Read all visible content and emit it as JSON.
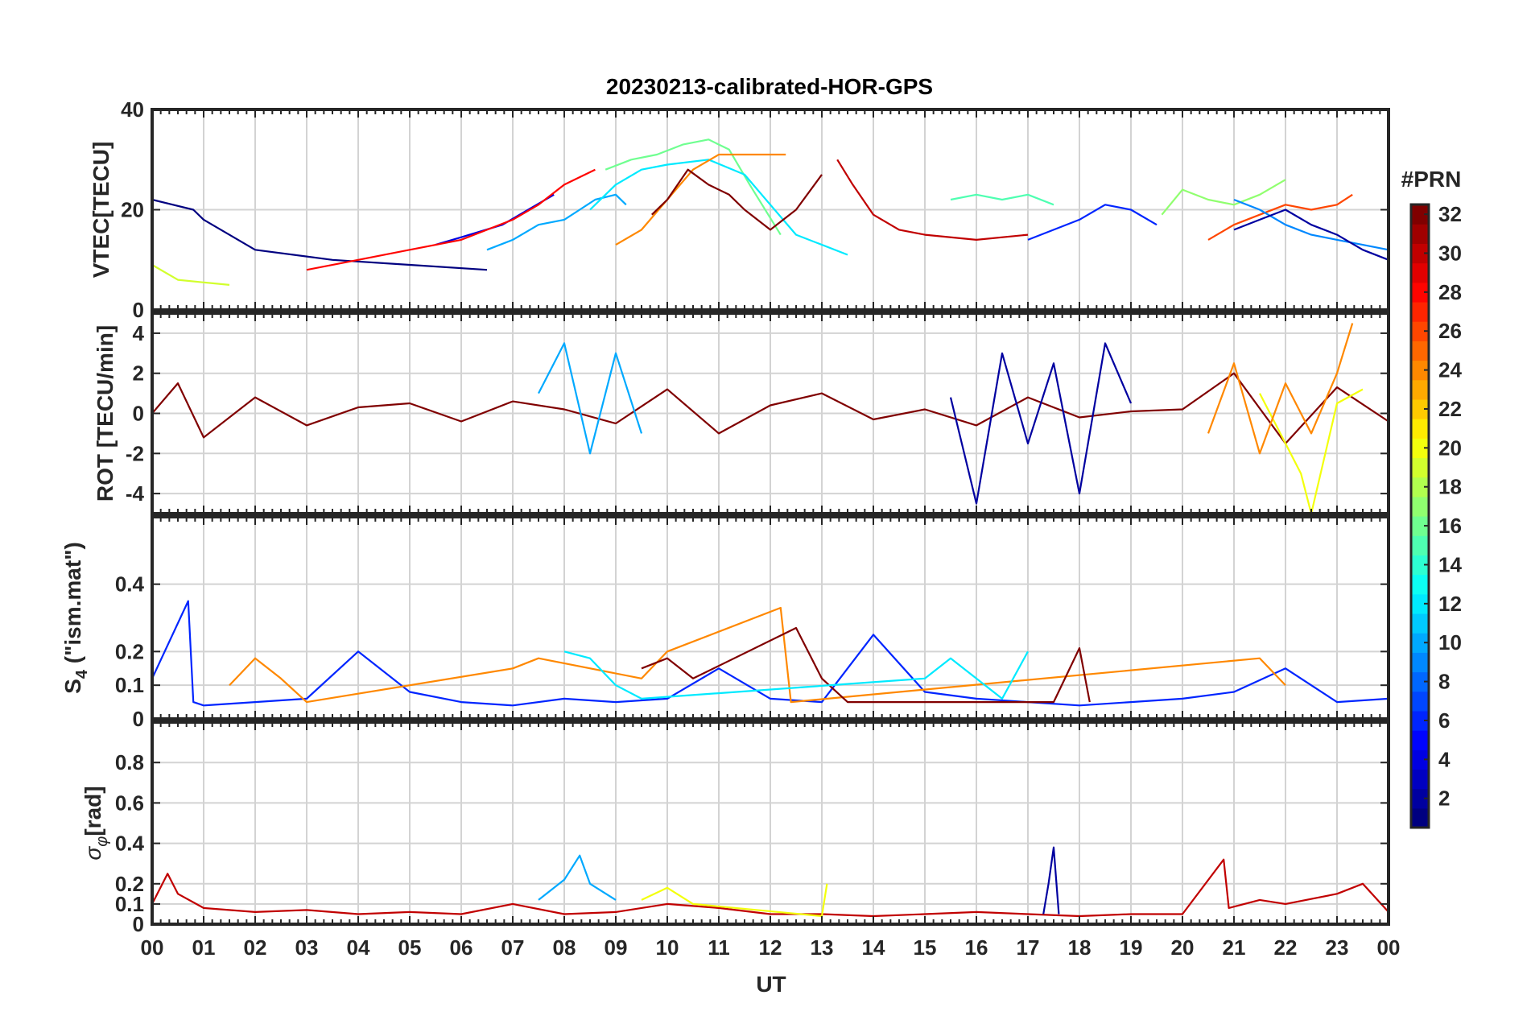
{
  "chart_data": {
    "type": "line",
    "title": "20230213-calibrated-HOR-GPS",
    "xlabel": "UT",
    "x_range_hours": [
      0,
      24
    ],
    "x_tick_labels": [
      "00",
      "01",
      "02",
      "03",
      "04",
      "05",
      "06",
      "07",
      "08",
      "09",
      "10",
      "11",
      "12",
      "13",
      "14",
      "15",
      "16",
      "17",
      "18",
      "19",
      "20",
      "21",
      "22",
      "23",
      "00"
    ],
    "grid": true,
    "colorbar": {
      "label": "#PRN",
      "range": [
        1,
        32
      ],
      "colormap": "jet",
      "tick_labels": [
        "2",
        "4",
        "6",
        "8",
        "10",
        "12",
        "14",
        "16",
        "18",
        "20",
        "22",
        "24",
        "26",
        "28",
        "30",
        "32"
      ]
    },
    "panels": [
      {
        "id": "vtec",
        "ylabel": "VTEC[TECU]",
        "ylim": [
          0,
          40
        ],
        "yticks": [
          0,
          20,
          40
        ],
        "ytick_labels": [
          "0",
          "20",
          "40"
        ],
        "series": [
          {
            "prn": 1,
            "name": "PRN 1",
            "x": [
              0,
              0.8,
              1.0,
              2.0,
              3.5,
              5.0,
              6.5
            ],
            "y": [
              22,
              20,
              18,
              12,
              10,
              9,
              8
            ]
          },
          {
            "prn": 4,
            "name": "PRN 4",
            "x": [
              5.5,
              6.0,
              6.8,
              7.3,
              7.8
            ],
            "y": [
              13,
              14.5,
              17,
              20,
              23
            ]
          },
          {
            "prn": 10,
            "name": "PRN 10",
            "x": [
              6.5,
              7.0,
              7.5,
              8.0,
              8.3,
              8.6,
              9.0,
              9.2
            ],
            "y": [
              12,
              14,
              17,
              18,
              20,
              22,
              23,
              21
            ]
          },
          {
            "prn": 28,
            "name": "PRN 28",
            "x": [
              3.0,
              4.0,
              5.0,
              6.0,
              7.0,
              7.5,
              8.0,
              8.6
            ],
            "y": [
              8,
              10,
              12,
              14,
              18,
              21,
              25,
              28
            ]
          },
          {
            "prn": 16,
            "name": "PRN 16",
            "x": [
              8.8,
              9.3,
              9.8,
              10.3,
              10.8,
              11.2,
              11.6,
              12.2
            ],
            "y": [
              28,
              30,
              31,
              33,
              34,
              32,
              25,
              15
            ]
          },
          {
            "prn": 12,
            "name": "PRN 12",
            "x": [
              8.5,
              9.0,
              9.5,
              10.0,
              10.8,
              11.5,
              12.0,
              12.5,
              13.5
            ],
            "y": [
              20,
              25,
              28,
              29,
              30,
              27,
              21,
              15,
              11
            ]
          },
          {
            "prn": 24,
            "name": "PRN 24",
            "x": [
              9.0,
              9.5,
              10.0,
              10.5,
              11.0,
              11.7,
              12.3
            ],
            "y": [
              13,
              16,
              22,
              28,
              31,
              31,
              31
            ]
          },
          {
            "prn": 32,
            "name": "PRN 32",
            "x": [
              9.7,
              10.0,
              10.4,
              10.8,
              11.2,
              11.5,
              12.0,
              12.5,
              13.0
            ],
            "y": [
              19,
              22,
              28,
              25,
              23,
              20,
              16,
              20,
              27
            ]
          },
          {
            "prn": 30,
            "name": "PRN 30",
            "x": [
              13.3,
              13.6,
              14.0,
              14.5,
              15.0,
              16.0,
              17.0
            ],
            "y": [
              30,
              25,
              19,
              16,
              15,
              14,
              15
            ]
          },
          {
            "prn": 15,
            "name": "PRN 15",
            "x": [
              15.5,
              16.0,
              16.5,
              17.0,
              17.5
            ],
            "y": [
              22,
              23,
              22,
              23,
              21
            ]
          },
          {
            "prn": 19,
            "name": "PRN 19",
            "x": [
              0,
              0.5,
              1.0,
              1.5
            ],
            "y": [
              9,
              6,
              5.5,
              5
            ]
          },
          {
            "prn": 6,
            "name": "PRN 6",
            "x": [
              17.0,
              17.5,
              18.0,
              18.5,
              19.0,
              19.5
            ],
            "y": [
              14,
              16,
              18,
              21,
              20,
              17
            ]
          },
          {
            "prn": 17,
            "name": "PRN 17",
            "x": [
              19.6,
              20.0,
              20.5,
              21.0,
              21.5,
              22.0
            ],
            "y": [
              19,
              24,
              22,
              21,
              23,
              26
            ]
          },
          {
            "prn": 26,
            "name": "PRN 26",
            "x": [
              20.5,
              21.0,
              21.5,
              22.0,
              22.5,
              23.0,
              23.3
            ],
            "y": [
              14,
              17,
              19,
              21,
              20,
              21,
              23
            ]
          },
          {
            "prn": 9,
            "name": "PRN 9",
            "x": [
              21.0,
              21.5,
              22.0,
              22.5,
              23.0,
              23.5,
              24.0
            ],
            "y": [
              22,
              20,
              17,
              15,
              14,
              13,
              12
            ]
          },
          {
            "prn": 2,
            "name": "PRN 2",
            "x": [
              21.0,
              21.5,
              22.0,
              22.5,
              23.0,
              23.5,
              24.0
            ],
            "y": [
              16,
              18,
              20,
              17,
              15,
              12,
              10
            ]
          }
        ]
      },
      {
        "id": "rot",
        "ylabel": "ROT [TECU/min]",
        "ylim": [
          -5,
          5
        ],
        "yticks": [
          -4,
          -2,
          0,
          2,
          4
        ],
        "ytick_labels": [
          "-4",
          "-2",
          "0",
          "2",
          "4"
        ],
        "series": [
          {
            "prn": 32,
            "name": "PRN 32",
            "x": [
              0,
              0.5,
              1.0,
              2.0,
              3.0,
              4.0,
              5.0,
              6.0,
              7.0,
              8.0,
              9.0,
              10.0,
              11.0,
              12.0,
              13.0,
              14.0,
              15.0,
              16.0,
              17.0,
              18.0,
              19.0,
              20.0,
              21.0,
              22.0,
              23.0,
              24.0
            ],
            "y": [
              0,
              1.5,
              -1.2,
              0.8,
              -0.6,
              0.3,
              0.5,
              -0.4,
              0.6,
              0.2,
              -0.5,
              1.2,
              -1.0,
              0.4,
              1.0,
              -0.3,
              0.2,
              -0.6,
              0.8,
              -0.2,
              0.1,
              0.2,
              2.0,
              -1.5,
              1.3,
              -0.4
            ]
          },
          {
            "prn": 10,
            "name": "PRN 10",
            "x": [
              7.5,
              8.0,
              8.5,
              9.0,
              9.5
            ],
            "y": [
              1.0,
              3.5,
              -2.0,
              3.0,
              -1.0
            ]
          },
          {
            "prn": 2,
            "name": "PRN 2",
            "x": [
              15.5,
              16.0,
              16.5,
              17.0,
              17.5,
              18.0,
              18.5,
              19.0
            ],
            "y": [
              0.8,
              -4.5,
              3.0,
              -1.5,
              2.5,
              -4.0,
              3.5,
              0.5
            ]
          },
          {
            "prn": 20,
            "name": "PRN 20",
            "x": [
              21.5,
              22.0,
              22.3,
              22.5,
              23.0,
              23.5
            ],
            "y": [
              1.0,
              -1.5,
              -3.0,
              -5.0,
              0.5,
              1.2
            ]
          },
          {
            "prn": 24,
            "name": "PRN 24",
            "x": [
              20.5,
              21.0,
              21.5,
              22.0,
              22.5,
              23.0,
              23.3
            ],
            "y": [
              -1.0,
              2.5,
              -2.0,
              1.5,
              -1.0,
              2.0,
              4.5
            ]
          }
        ]
      },
      {
        "id": "s4",
        "ylabel": "S4 (\"ism.mat\")",
        "ylim": [
          0,
          0.6
        ],
        "yticks": [
          0,
          0.1,
          0.2,
          0.4
        ],
        "ytick_labels": [
          "0",
          "0.1",
          "0.2",
          "0.4"
        ],
        "series": [
          {
            "prn": 6,
            "name": "PRN 6",
            "x": [
              0,
              0.7,
              0.8,
              1.0,
              2.0,
              3.0,
              4.0,
              5.0,
              6.0,
              7.0,
              8.0,
              9.0,
              10.0,
              11.0,
              12.0,
              13.0,
              14.0,
              15.0,
              16.0,
              17.0,
              18.0,
              19.0,
              20.0,
              21.0,
              22.0,
              23.0,
              24.0
            ],
            "y": [
              0.12,
              0.35,
              0.05,
              0.04,
              0.05,
              0.06,
              0.2,
              0.08,
              0.05,
              0.04,
              0.06,
              0.05,
              0.06,
              0.15,
              0.06,
              0.05,
              0.25,
              0.08,
              0.06,
              0.05,
              0.04,
              0.05,
              0.06,
              0.08,
              0.15,
              0.05,
              0.06
            ]
          },
          {
            "prn": 24,
            "name": "PRN 24",
            "x": [
              1.5,
              2.0,
              2.5,
              3.0,
              7.0,
              7.5,
              9.5,
              10.0,
              12.2,
              12.4,
              21.5,
              22.0
            ],
            "y": [
              0.1,
              0.18,
              0.12,
              0.05,
              0.15,
              0.18,
              0.12,
              0.2,
              0.33,
              0.05,
              0.18,
              0.1
            ]
          },
          {
            "prn": 32,
            "name": "PRN 32",
            "x": [
              9.5,
              10.0,
              10.5,
              12.5,
              13.0,
              13.5,
              17.5,
              18.0,
              18.2
            ],
            "y": [
              0.15,
              0.18,
              0.12,
              0.27,
              0.12,
              0.05,
              0.05,
              0.21,
              0.05
            ]
          },
          {
            "prn": 12,
            "name": "PRN 12",
            "x": [
              8.0,
              8.5,
              9.0,
              9.5,
              15.0,
              15.5,
              16.5,
              17.0
            ],
            "y": [
              0.2,
              0.18,
              0.1,
              0.06,
              0.12,
              0.18,
              0.06,
              0.2
            ]
          }
        ]
      },
      {
        "id": "sigma_phi",
        "ylabel": "σφ[rad]",
        "ylim": [
          0,
          1
        ],
        "yticks": [
          0,
          0.1,
          0.2,
          0.4,
          0.6,
          0.8
        ],
        "ytick_labels": [
          "0",
          "0.1",
          "0.2",
          "0.4",
          "0.6",
          "0.8"
        ],
        "series": [
          {
            "prn": 30,
            "name": "PRN 30",
            "x": [
              0,
              0.3,
              0.5,
              1.0,
              2.0,
              3.0,
              4.0,
              5.0,
              6.0,
              7.0,
              8.0,
              9.0,
              10.0,
              11.0,
              12.0,
              13.0,
              14.0,
              15.0,
              16.0,
              17.0,
              18.0,
              19.0,
              20.0,
              20.8,
              20.9,
              21.5,
              22.0,
              23.0,
              23.5,
              24.0
            ],
            "y": [
              0.1,
              0.25,
              0.15,
              0.08,
              0.06,
              0.07,
              0.05,
              0.06,
              0.05,
              0.1,
              0.05,
              0.06,
              0.1,
              0.08,
              0.05,
              0.05,
              0.04,
              0.05,
              0.06,
              0.05,
              0.04,
              0.05,
              0.05,
              0.32,
              0.08,
              0.12,
              0.1,
              0.15,
              0.2,
              0.06
            ]
          },
          {
            "prn": 10,
            "name": "PRN 10",
            "x": [
              7.5,
              8.0,
              8.3,
              8.5,
              9.0
            ],
            "y": [
              0.12,
              0.22,
              0.34,
              0.2,
              0.12
            ]
          },
          {
            "prn": 2,
            "name": "PRN 2",
            "x": [
              17.3,
              17.4,
              17.5,
              17.6
            ],
            "y": [
              0.05,
              0.2,
              0.38,
              0.05
            ]
          },
          {
            "prn": 20,
            "name": "PRN 20",
            "x": [
              9.5,
              10.0,
              10.5,
              13.0,
              13.1
            ],
            "y": [
              0.12,
              0.18,
              0.1,
              0.04,
              0.2
            ]
          }
        ]
      }
    ]
  }
}
